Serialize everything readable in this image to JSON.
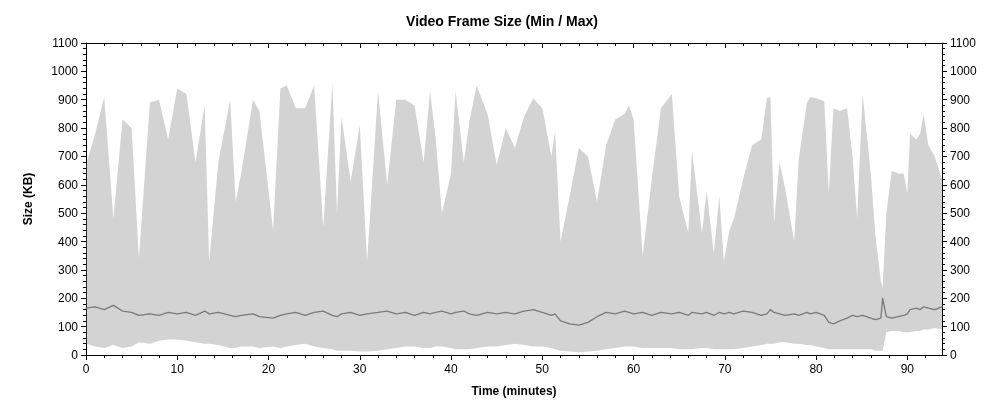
{
  "chart_data": {
    "type": "line",
    "title": "Video Frame Size (Min / Max)",
    "xlabel": "Time (minutes)",
    "ylabel": "Size (KB)",
    "xlim": [
      0,
      93.8
    ],
    "xticks": [
      0,
      10,
      20,
      30,
      40,
      50,
      60,
      70,
      80,
      90
    ],
    "ylim": [
      0,
      1100
    ],
    "yticks": [
      0,
      100,
      200,
      300,
      400,
      500,
      600,
      700,
      800,
      900,
      1000,
      1100
    ],
    "y2lim": [
      0,
      1100
    ],
    "y2ticks": [
      0,
      100,
      200,
      300,
      400,
      500,
      600,
      700,
      800,
      900,
      1000,
      1100
    ],
    "series": [
      {
        "color": "#7a7a7a",
        "x": [
          0,
          1,
          2,
          3,
          4,
          5,
          5.8,
          7,
          8,
          9,
          10,
          11,
          12,
          13,
          13.5,
          14.5,
          15.8,
          16.4,
          17,
          18.3,
          19,
          20.5,
          21.3,
          22,
          23,
          24,
          25,
          26,
          27,
          27.5,
          28,
          29,
          30,
          30.8,
          32,
          33,
          34,
          35,
          36,
          37,
          37.7,
          38.3,
          39,
          40,
          40.5,
          41.4,
          42,
          42.8,
          44,
          45,
          46,
          47,
          48,
          49,
          50,
          51,
          51.4,
          52,
          53,
          54,
          55,
          56,
          57,
          58,
          59,
          59.5,
          60,
          61,
          62,
          63,
          64.2,
          65,
          66,
          66.4,
          67.5,
          68,
          68.8,
          69.4,
          69.9,
          70.5,
          71,
          72,
          73,
          74,
          74.6,
          75,
          75.4,
          76,
          76.6,
          77.6,
          78.1,
          79,
          79.4,
          80,
          80.9,
          81.4,
          81.9,
          82.6,
          83.4,
          84,
          84.5,
          85.1,
          86,
          86.5,
          87.1,
          87.3,
          87.7,
          88.3,
          89,
          89.6,
          90,
          90.3,
          91,
          91.4,
          91.8,
          92.3,
          93,
          93.8
        ],
        "values": [
          165,
          170,
          160,
          175,
          155,
          150,
          140,
          145,
          140,
          150,
          145,
          150,
          140,
          155,
          145,
          150,
          140,
          135,
          140,
          145,
          135,
          130,
          140,
          145,
          150,
          140,
          150,
          155,
          140,
          135,
          145,
          150,
          140,
          145,
          150,
          155,
          145,
          150,
          140,
          150,
          145,
          150,
          155,
          145,
          150,
          155,
          145,
          140,
          150,
          145,
          150,
          145,
          155,
          160,
          150,
          140,
          145,
          120,
          110,
          105,
          115,
          135,
          150,
          145,
          155,
          150,
          145,
          150,
          140,
          150,
          145,
          150,
          140,
          150,
          145,
          150,
          140,
          150,
          145,
          150,
          145,
          155,
          150,
          140,
          145,
          160,
          150,
          145,
          140,
          145,
          140,
          150,
          145,
          150,
          140,
          115,
          110,
          120,
          130,
          140,
          135,
          140,
          130,
          125,
          130,
          200,
          135,
          130,
          135,
          140,
          145,
          160,
          165,
          160,
          170,
          165,
          160,
          170
        ],
        "lower": [
          40,
          30,
          25,
          35,
          25,
          30,
          45,
          40,
          50,
          55,
          55,
          50,
          45,
          40,
          40,
          35,
          25,
          25,
          30,
          30,
          25,
          30,
          25,
          30,
          35,
          40,
          30,
          25,
          20,
          15,
          15,
          15,
          12,
          12,
          15,
          20,
          25,
          30,
          30,
          25,
          25,
          30,
          30,
          25,
          20,
          20,
          20,
          25,
          30,
          30,
          35,
          40,
          35,
          30,
          30,
          25,
          20,
          15,
          12,
          10,
          12,
          15,
          20,
          25,
          30,
          30,
          30,
          25,
          25,
          25,
          25,
          20,
          20,
          20,
          25,
          25,
          20,
          20,
          20,
          20,
          20,
          25,
          30,
          35,
          40,
          40,
          40,
          45,
          45,
          40,
          40,
          35,
          35,
          30,
          25,
          20,
          20,
          20,
          20,
          20,
          20,
          20,
          20,
          15,
          15,
          15,
          80,
          85,
          85,
          80,
          80,
          80,
          85,
          85,
          90,
          90,
          95,
          90
        ],
        "upper": [
          670,
          780,
          910,
          480,
          830,
          800,
          340,
          890,
          900,
          760,
          940,
          920,
          680,
          880,
          330,
          680,
          900,
          540,
          640,
          900,
          860,
          440,
          940,
          950,
          870,
          870,
          950,
          450,
          960,
          500,
          840,
          610,
          810,
          330,
          930,
          600,
          900,
          900,
          880,
          680,
          930,
          770,
          500,
          640,
          930,
          680,
          820,
          950,
          850,
          670,
          800,
          730,
          840,
          905,
          870,
          700,
          790,
          400,
          560,
          730,
          700,
          540,
          740,
          830,
          850,
          880,
          830,
          350,
          620,
          870,
          920,
          560,
          430,
          720,
          430,
          580,
          360,
          560,
          330,
          440,
          480,
          620,
          740,
          760,
          905,
          910,
          470,
          680,
          590,
          400,
          690,
          890,
          910,
          905,
          895,
          570,
          870,
          860,
          870,
          700,
          480,
          920,
          640,
          420,
          260,
          240,
          500,
          650,
          640,
          640,
          570,
          780,
          760,
          780,
          850,
          740,
          700,
          620
        ]
      }
    ]
  }
}
